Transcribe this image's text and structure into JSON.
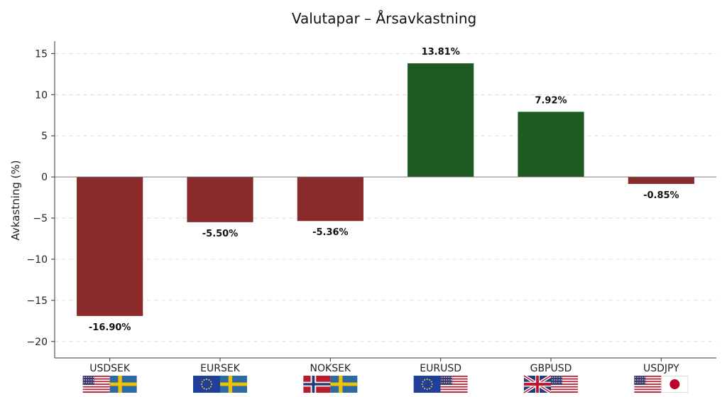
{
  "chart_data": {
    "type": "bar",
    "title": "Valutapar – Årsavkastning",
    "xlabel": "",
    "ylabel": "Avkastning (%)",
    "categories": [
      "USDSEK",
      "EURSEK",
      "NOKSEK",
      "EURUSD",
      "GBPUSD",
      "USDJPY"
    ],
    "values": [
      -16.9,
      -5.5,
      -5.36,
      13.81,
      7.92,
      -0.85
    ],
    "data_labels": [
      "-16.90%",
      "-5.50%",
      "-5.36%",
      "13.81%",
      "7.92%",
      "-0.85%"
    ],
    "ylim": [
      -22,
      16.5
    ],
    "yticks": [
      15,
      10,
      5,
      0,
      -5,
      -10,
      -15,
      -20
    ],
    "ytick_labels": [
      "15",
      "10",
      "5",
      "0",
      "−5",
      "−10",
      "−15",
      "−20"
    ],
    "grid": true,
    "colors": {
      "positive": "#1e5b21",
      "negative": "#8b2a2a"
    },
    "flag_icons": [
      [
        "us-flag-icon",
        "se-flag-icon"
      ],
      [
        "eu-flag-icon",
        "se-flag-icon"
      ],
      [
        "no-flag-icon",
        "se-flag-icon"
      ],
      [
        "eu-flag-icon",
        "us-flag-icon"
      ],
      [
        "gb-flag-icon",
        "us-flag-icon"
      ],
      [
        "us-flag-icon",
        "jp-flag-icon"
      ]
    ]
  }
}
